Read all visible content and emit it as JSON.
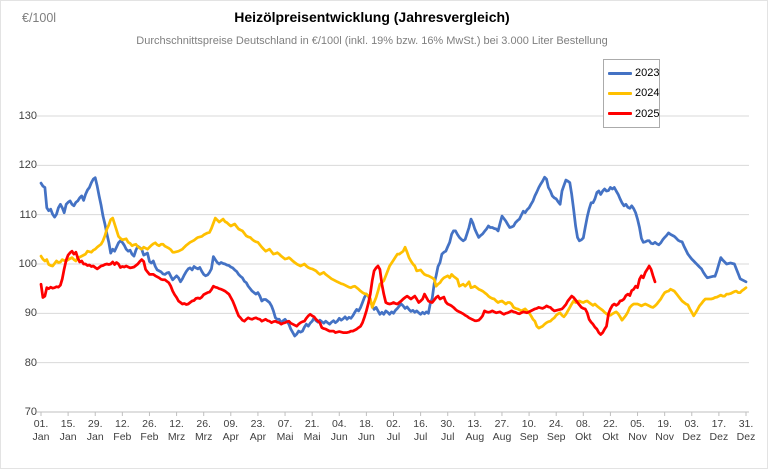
{
  "colors": {
    "gridline": "#d9d9d9",
    "axis": "#bfbfbf",
    "tick_label": "#404040",
    "subtitle_text": "#7f7f7f",
    "series_2023": "#4472C4",
    "series_2024": "#FFC000",
    "series_2025": "#FF0000"
  },
  "chart_data": {
    "type": "line",
    "title": "Heizölpreisentwicklung (Jahresvergleich)",
    "subtitle": "Durchschnittspreise Deutschland in €/100l (inkl. 19% bzw. 16%  MwSt.) bei 3.000 Liter Bestellung",
    "y_axis_unit": "€/100l",
    "ylim": [
      70,
      130
    ],
    "yticks": [
      130,
      120,
      110,
      100,
      90,
      80,
      70
    ],
    "grid": "horizontal",
    "legend_position": "top-right",
    "x_unit": "day of year (0 = 01. Jan, 364 = 31. Dez)",
    "xtick_days": [
      0,
      14,
      28,
      42,
      56,
      70,
      84,
      98,
      112,
      126,
      140,
      154,
      168,
      182,
      196,
      210,
      224,
      238,
      252,
      266,
      280,
      294,
      308,
      322,
      336,
      350,
      364
    ],
    "xtick_labels": [
      "01. Jan",
      "15. Jan",
      "29. Jan",
      "12. Feb",
      "26. Feb",
      "12. Mrz",
      "26. Mrz",
      "09. Apr",
      "23. Apr",
      "07. Mai",
      "21. Mai",
      "04. Jun",
      "18. Jun",
      "02. Jul",
      "16. Jul",
      "30. Jul",
      "13. Aug",
      "27. Aug",
      "10. Sep",
      "24. Sep",
      "08. Okt",
      "22. Okt",
      "05. Nov",
      "19. Nov",
      "03. Dez",
      "17. Dez",
      "31. Dez"
    ],
    "series": [
      {
        "name": "2023",
        "color": "#4472C4",
        "start_day": 0,
        "values": [
          116.4,
          115.8,
          115.5,
          111.4,
          110.8,
          111.1,
          110.1,
          109.5,
          110.1,
          111.4,
          112.1,
          111.4,
          110.4,
          112.1,
          112.5,
          112.8,
          112.1,
          111.8,
          112.5,
          112.8,
          113.4,
          113.8,
          112.9,
          114.1,
          115,
          115.5,
          116.5,
          117.2,
          117.5,
          115.8,
          113.8,
          112,
          109.7,
          108.1,
          106.1,
          104.4,
          102.2,
          103,
          102.6,
          103.4,
          104.3,
          104.7,
          104.4,
          103.8,
          103,
          102.6,
          102.8,
          102,
          101.6,
          102.8,
          103.6,
          103.3,
          103,
          101.8,
          102,
          102.2,
          100.5,
          100.2,
          100.6,
          99.5,
          98.8,
          98.6,
          98.4,
          98,
          97.9,
          98.2,
          98.3,
          97.5,
          96.8,
          97.2,
          97.6,
          97.2,
          96.4,
          97,
          97.8,
          98.5,
          99,
          99.2,
          98.8,
          99.5,
          99.2,
          99,
          99.3,
          98.5,
          97.9,
          97.6,
          97.8,
          98.3,
          99,
          101.5,
          100.9,
          100.3,
          100,
          100.3,
          100.1,
          100,
          99.8,
          99.7,
          99.4,
          99.2,
          98.8,
          98.5,
          97.9,
          97.5,
          97.2,
          96.5,
          96.2,
          95.5,
          95,
          94.5,
          94.2,
          93.9,
          94.2,
          93.5,
          92.5,
          92.8,
          92.8,
          92.5,
          92.2,
          91.5,
          90.5,
          89.1,
          88.8,
          88.8,
          88.1,
          88.5,
          88.8,
          88.3,
          87.8,
          86.8,
          86.1,
          85.4,
          85.8,
          86.4,
          86.2,
          86.4,
          87.2,
          87.8,
          87.4,
          88,
          88.4,
          89.1,
          88.5,
          88.2,
          88.6,
          88.3,
          88,
          88.4,
          88.1,
          87.8,
          88.2,
          88.5,
          88.1,
          88.4,
          89,
          88.6,
          88.9,
          89.3,
          88.8,
          89.2,
          89,
          89.5,
          90.2,
          90.8,
          90.5,
          91.2,
          92.2,
          93.2,
          93.9,
          93.5,
          92.5,
          91.5,
          90.8,
          91.2,
          90.5,
          89.8,
          90.2,
          89.8,
          90.5,
          90.2,
          89.8,
          90.3,
          90,
          90.6,
          91,
          91.5,
          91.9,
          91.5,
          91,
          91.3,
          90.8,
          90.4,
          90.6,
          90.2,
          90.5,
          90.1,
          89.8,
          90.2,
          89.9,
          90.3,
          90,
          92,
          93,
          96,
          97.6,
          99.5,
          100.3,
          102,
          102.4,
          102.6,
          103.5,
          104.4,
          106,
          106.7,
          106.7,
          106,
          105.4,
          105,
          104.7,
          105,
          106.2,
          107.4,
          109.1,
          108.3,
          107.1,
          106.2,
          105.4,
          105.8,
          106.1,
          106.6,
          107.1,
          107.7,
          107.4,
          107.4,
          107.2,
          107.1,
          106.7,
          108.2,
          109.7,
          109.2,
          108.7,
          108,
          107.4,
          107.5,
          107.7,
          108.4,
          108.8,
          109.1,
          109.9,
          110.7,
          110.4,
          111,
          111.4,
          112.1,
          112.8,
          113.8,
          114.6,
          115.5,
          116.2,
          116.8,
          117.6,
          117.2,
          115.5,
          114.8,
          113.8,
          113.4,
          113.2,
          112.6,
          112.1,
          114.8,
          115.9,
          117,
          116.8,
          116.5,
          114.1,
          111.1,
          107.7,
          105.4,
          104.7,
          104.9,
          105.3,
          107.4,
          109.5,
          111.1,
          112.4,
          112.4,
          113.2,
          114.5,
          114.8,
          114.1,
          114.8,
          115.2,
          114.8,
          114.9,
          115.5,
          115.2,
          115.5,
          114.8,
          114.1,
          113.2,
          112.4,
          111.8,
          112.1,
          111.5,
          111.3,
          111.8,
          111.2,
          110.4,
          109.1,
          107.4,
          105.2,
          104.4,
          104.5,
          104.7,
          104.7,
          104.2,
          104.1,
          104.4,
          104.1,
          103.9,
          104.3,
          104.9,
          105.4,
          105.8,
          106.3,
          106,
          105.8,
          105.6,
          105.2,
          104.8,
          104.6,
          104.5,
          103.6,
          102.8,
          102,
          101.5,
          101,
          100.6,
          100.2,
          99.8,
          99.4,
          99,
          98.3,
          97.7,
          97.2,
          97.3,
          97.4,
          97.5,
          97.5,
          98.6,
          100,
          101.3,
          100.8,
          100.4,
          100,
          100.1,
          100.2,
          100.1,
          100,
          99,
          98,
          97,
          96.8,
          96.6,
          96.4
        ]
      },
      {
        "name": "2024",
        "color": "#FFC000",
        "start_day": 0,
        "values": [
          101.6,
          101,
          100.6,
          100.9,
          99.9,
          99.7,
          99.6,
          100.1,
          100.6,
          100.3,
          100.4,
          100.9,
          100.7,
          100.6,
          100.9,
          101.1,
          101.3,
          100.9,
          100.6,
          101.3,
          101.4,
          101.6,
          101.8,
          102,
          102.6,
          102.5,
          102.4,
          102.8,
          103,
          103.4,
          103.7,
          104,
          104.7,
          105.7,
          107.1,
          107.9,
          109,
          109.3,
          108.1,
          106.9,
          105.6,
          105.2,
          104.9,
          105,
          105.1,
          104.4,
          104.2,
          103.7,
          103.9,
          104,
          103.5,
          103.2,
          103,
          103.4,
          103.2,
          103,
          103.4,
          103.8,
          104.1,
          104.3,
          103.9,
          103.7,
          104,
          104,
          103.6,
          103.4,
          103.2,
          102.9,
          102.4,
          102.4,
          102.5,
          102.6,
          102.8,
          103,
          103.4,
          103.8,
          104.1,
          104.4,
          104.6,
          104.8,
          105.1,
          105.4,
          105.5,
          105.6,
          105.9,
          106.1,
          106.3,
          106.4,
          107.2,
          108.3,
          109.3,
          108.9,
          108.5,
          108.8,
          109.1,
          108.6,
          108.4,
          108,
          107.7,
          107.9,
          108.1,
          107.6,
          107.1,
          106.9,
          106.7,
          106.2,
          105.7,
          105.5,
          105.4,
          105,
          104.7,
          104.5,
          104.4,
          103.9,
          103.4,
          103,
          102.6,
          102.8,
          103,
          102.5,
          102,
          102.1,
          102.3,
          102,
          101.6,
          101.3,
          101,
          101.1,
          101.3,
          101,
          100.6,
          100.3,
          100,
          99.8,
          99.6,
          99.8,
          100,
          99.6,
          99.3,
          99.1,
          99,
          98.8,
          98.6,
          98.2,
          97.9,
          98.1,
          98.3,
          97.9,
          97.6,
          97.3,
          97,
          96.8,
          96.6,
          96.4,
          96.2,
          96,
          95.9,
          95.7,
          95.5,
          95.3,
          95.2,
          95.4,
          95.5,
          95.2,
          94.9,
          94.5,
          94.2,
          94,
          93.9,
          93.5,
          93,
          91.2,
          92.2,
          93.2,
          94.5,
          95.9,
          96.3,
          96.6,
          97.6,
          98.6,
          99.6,
          100.2,
          100.8,
          101.4,
          102,
          102,
          102.3,
          102.6,
          103.4,
          102.4,
          101.3,
          100.6,
          100,
          99.6,
          98.6,
          98.7,
          98.8,
          98.3,
          97.9,
          97.7,
          97.6,
          97.4,
          97.2,
          96.9,
          95.5,
          95.9,
          96.2,
          96.8,
          97.2,
          97.4,
          97.6,
          97.2,
          97.9,
          97.5,
          97.2,
          96.9,
          95.5,
          95.7,
          95.9,
          95.5,
          95.9,
          96.4,
          95.2,
          95.3,
          95.5,
          95.2,
          94.9,
          94.7,
          94.5,
          94.2,
          93.9,
          93.5,
          93.2,
          93,
          92.9,
          92.5,
          92.2,
          92.4,
          92.5,
          92.2,
          91.9,
          92.2,
          92.2,
          91.9,
          91.2,
          91,
          90.9,
          90.7,
          90.5,
          90.7,
          90.9,
          90.5,
          90.1,
          89.5,
          88.8,
          88.4,
          87.4,
          87,
          87.2,
          87.4,
          87.8,
          88.1,
          88.3,
          88.4,
          88.8,
          89.1,
          89.6,
          89.9,
          90.1,
          89.6,
          89.3,
          89.8,
          90.5,
          91.2,
          91.9,
          92.5,
          92.2,
          92.4,
          92.5,
          92.3,
          92.2,
          92.4,
          92.5,
          92.2,
          91.9,
          91.6,
          91.9,
          91.5,
          91.2,
          90.9,
          90.6,
          90.2,
          89.9,
          89.6,
          89.6,
          89.9,
          90.1,
          90.3,
          89.9,
          89.3,
          88.6,
          89.1,
          89.6,
          90.3,
          91.2,
          91.6,
          91.9,
          91.9,
          91.9,
          91.7,
          91.5,
          91.7,
          91.9,
          91.7,
          91.5,
          91.3,
          91.2,
          91.5,
          91.9,
          92.4,
          92.9,
          93.6,
          94.2,
          94.4,
          94.5,
          94.9,
          94.7,
          94.5,
          94,
          93.5,
          93,
          92.5,
          92.2,
          91.9,
          91.7,
          90.9,
          90.2,
          89.5,
          90.1,
          90.8,
          91.5,
          92,
          92.5,
          92.9,
          92.9,
          92.9,
          92.9,
          93,
          93.2,
          93.3,
          93.5,
          93.7,
          93.5,
          93.5,
          93.9,
          93.9,
          94,
          94.2,
          94.4,
          94.5,
          94.2,
          94.2,
          94.6,
          94.9,
          95.2
        ]
      },
      {
        "name": "2025",
        "color": "#FF0000",
        "start_day": 0,
        "values": [
          95.9,
          93.2,
          93.5,
          95.2,
          95,
          95.3,
          95.1,
          95.2,
          95.4,
          95.3,
          95.7,
          97,
          99,
          100.8,
          101.8,
          102.3,
          102.6,
          102,
          102.4,
          101.2,
          100.4,
          100.6,
          100,
          100,
          99.7,
          99.8,
          99.5,
          99.6,
          99.3,
          99,
          99.3,
          99.6,
          99.7,
          99.9,
          100,
          99.9,
          100,
          100.4,
          99.9,
          100.3,
          100,
          99.3,
          99.5,
          99.4,
          99.6,
          99.4,
          99.2,
          99.3,
          99.4,
          99.7,
          100,
          100.5,
          100.9,
          100.5,
          98.9,
          98.4,
          97.9,
          97.9,
          97.9,
          97.6,
          97.4,
          97.2,
          96.9,
          96.8,
          96.8,
          96.5,
          96.2,
          95.5,
          94.5,
          93.8,
          93.2,
          92.5,
          92.2,
          91.9,
          92,
          91.8,
          91.9,
          92.2,
          92.5,
          92.6,
          93,
          93.1,
          93,
          93.3,
          93.8,
          94,
          94.2,
          94.3,
          94.8,
          95.5,
          95.3,
          95.2,
          95,
          94.9,
          94.7,
          94.5,
          94.2,
          93.9,
          93.2,
          92.5,
          91.5,
          90.5,
          89.5,
          89.1,
          88.6,
          88.4,
          88.8,
          89.1,
          88.9,
          88.8,
          89,
          89.1,
          88.9,
          88.8,
          88.4,
          88.6,
          88.8,
          88.5,
          88.4,
          88.1,
          88.3,
          88.4,
          88.2,
          88.1,
          87.8,
          88,
          88.1,
          88.3,
          88.4,
          88,
          87.8,
          87.6,
          87.4,
          87.8,
          88.1,
          88.3,
          88.4,
          89,
          89.5,
          89.8,
          89.5,
          89.3,
          88.8,
          88.4,
          88.1,
          87.1,
          86.9,
          86.8,
          86.6,
          86.4,
          86.4,
          86.4,
          86.1,
          86.2,
          86.3,
          86.2,
          86.1,
          86.1,
          86.1,
          86.2,
          86.4,
          86.4,
          86.6,
          86.8,
          87.1,
          87.4,
          88.1,
          89.2,
          90.5,
          92,
          93.9,
          96.6,
          98.6,
          99.2,
          99.6,
          98.9,
          95.9,
          93.9,
          92.2,
          92,
          91.9,
          92,
          92.2,
          92,
          91.9,
          92.2,
          92.5,
          92.9,
          93.2,
          93.5,
          93.2,
          92.9,
          93.2,
          93.5,
          92.9,
          92.2,
          92.5,
          92.9,
          93.9,
          93.2,
          92.5,
          92.3,
          92.2,
          92.7,
          93.2,
          93.5,
          92.9,
          93.1,
          93.3,
          92.3,
          91.9,
          91.7,
          91.5,
          91.2,
          90.8,
          90.5,
          90.3,
          90.1,
          89.9,
          89.6,
          89.4,
          89.1,
          88.9,
          88.7,
          88.5,
          88.5,
          88.6,
          89,
          89.5,
          90.5,
          90.3,
          90.2,
          90.3,
          90.5,
          90.3,
          90.1,
          90.2,
          90.3,
          90,
          89.8,
          90,
          90.1,
          90.3,
          90.5,
          90.3,
          90.2,
          90,
          89.9,
          90.1,
          90.3,
          90.2,
          90.1,
          90.3,
          90.5,
          90.7,
          90.9,
          91,
          91.2,
          91.1,
          91,
          91.2,
          91.5,
          91.3,
          91.2,
          90.8,
          90.5,
          90.6,
          90.7,
          90.8,
          90.9,
          91.3,
          91.8,
          92.5,
          93,
          93.5,
          93.2,
          92.7,
          92.2,
          91.7,
          91.2,
          91,
          90.9,
          90.1,
          88.8,
          88.2,
          87.8,
          87.2,
          86.8,
          86.1,
          85.7,
          86.1,
          86.8,
          87.4,
          89.9,
          90.9,
          91.6,
          91.9,
          91.6,
          91.9,
          92.5,
          92.6,
          92.9,
          93.6,
          93.9,
          93.6,
          94.6,
          94.9,
          95.5,
          95.2,
          96.9,
          97.6,
          97.2,
          98.3,
          98.9,
          99.6,
          98.9,
          97.6,
          96.4
        ]
      }
    ]
  }
}
